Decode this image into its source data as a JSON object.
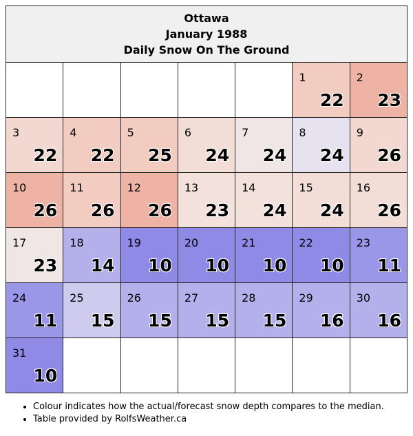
{
  "header": {
    "city": "Ottawa",
    "period": "January 1988",
    "metric": "Daily Snow On The Ground"
  },
  "colors": {
    "above_strong": "#eeb3a4",
    "above_mid": "#f2cbc1",
    "above_light": "#f3ddd7",
    "near_median": "#f0e6e6",
    "near_median_cool": "#e6e2f0",
    "below_light": "#cfcbee",
    "below_mid": "#b4b0ec",
    "below_strong": "#8e8ae6"
  },
  "weeks": [
    [
      null,
      null,
      null,
      null,
      null,
      {
        "day": "1",
        "value": "22",
        "color": "#f2cbc1"
      },
      {
        "day": "2",
        "value": "23",
        "color": "#eeb3a4"
      }
    ],
    [
      {
        "day": "3",
        "value": "22",
        "color": "#f3d8d1"
      },
      {
        "day": "4",
        "value": "22",
        "color": "#f2cbc1"
      },
      {
        "day": "5",
        "value": "25",
        "color": "#f2cbc1"
      },
      {
        "day": "6",
        "value": "24",
        "color": "#f3ddd7"
      },
      {
        "day": "7",
        "value": "24",
        "color": "#f0e6e6"
      },
      {
        "day": "8",
        "value": "24",
        "color": "#e6e2f0"
      },
      {
        "day": "9",
        "value": "26",
        "color": "#f3d8d1"
      }
    ],
    [
      {
        "day": "10",
        "value": "26",
        "color": "#eeb3a4"
      },
      {
        "day": "11",
        "value": "26",
        "color": "#f2cbc1"
      },
      {
        "day": "12",
        "value": "26",
        "color": "#eeb3a4"
      },
      {
        "day": "13",
        "value": "23",
        "color": "#f3e1dc"
      },
      {
        "day": "14",
        "value": "24",
        "color": "#f3e1dc"
      },
      {
        "day": "15",
        "value": "24",
        "color": "#f3ddd7"
      },
      {
        "day": "16",
        "value": "26",
        "color": "#f3ddd7"
      }
    ],
    [
      {
        "day": "17",
        "value": "23",
        "color": "#f0e6e6"
      },
      {
        "day": "18",
        "value": "14",
        "color": "#b4b0ec"
      },
      {
        "day": "19",
        "value": "10",
        "color": "#8e8ae6"
      },
      {
        "day": "20",
        "value": "10",
        "color": "#8e8ae6"
      },
      {
        "day": "21",
        "value": "10",
        "color": "#8e8ae6"
      },
      {
        "day": "22",
        "value": "10",
        "color": "#8e8ae6"
      },
      {
        "day": "23",
        "value": "11",
        "color": "#9a96e8"
      }
    ],
    [
      {
        "day": "24",
        "value": "11",
        "color": "#9a96e8"
      },
      {
        "day": "25",
        "value": "15",
        "color": "#cfcbee"
      },
      {
        "day": "26",
        "value": "15",
        "color": "#b4b0ec"
      },
      {
        "day": "27",
        "value": "15",
        "color": "#b4b0ec"
      },
      {
        "day": "28",
        "value": "15",
        "color": "#b4b0ec"
      },
      {
        "day": "29",
        "value": "16",
        "color": "#b4b0ec"
      },
      {
        "day": "30",
        "value": "16",
        "color": "#b4b0ec"
      }
    ],
    [
      {
        "day": "31",
        "value": "10",
        "color": "#8e8ae6"
      },
      null,
      null,
      null,
      null,
      null,
      null
    ]
  ],
  "notes": [
    "Colour indicates how the actual/forecast snow depth compares to the median.",
    "Table provided by RolfsWeather.ca"
  ]
}
